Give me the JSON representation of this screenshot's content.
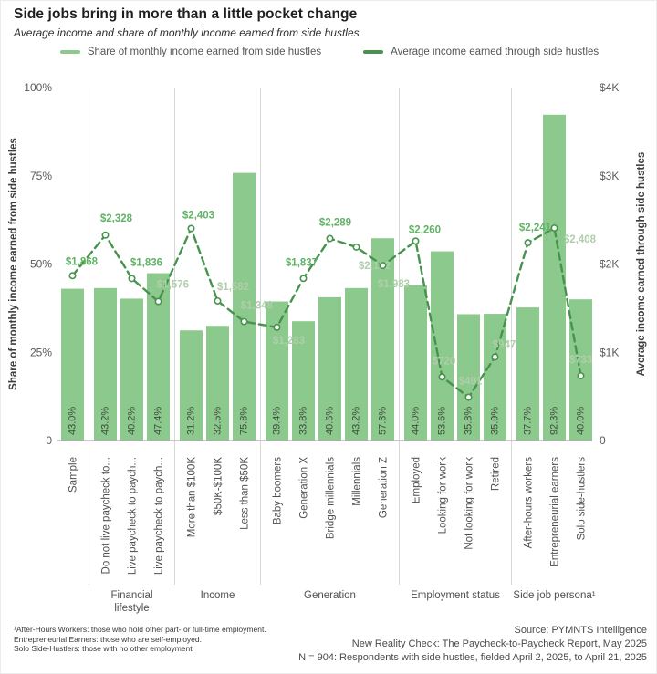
{
  "header": {
    "title": "Side jobs bring in more than a little pocket change",
    "subtitle": "Average income and share of monthly income earned from side hustles"
  },
  "chart_data": {
    "type": "bar+line",
    "legend": [
      {
        "label": "Share of monthly income earned from side hustles",
        "series": "bar",
        "color": "#8CC98C"
      },
      {
        "label": "Average income earned through side hustles",
        "series": "line",
        "color": "#47934E"
      }
    ],
    "left_axis": {
      "title": "Share of monthly income earned from side hustles",
      "unit": "percent",
      "range": [
        0,
        100
      ],
      "ticks": [
        "100%",
        "75%",
        "50%",
        "25%",
        "0"
      ]
    },
    "right_axis": {
      "title": "Average income earned through side hustles",
      "unit": "USD",
      "range": [
        0,
        4000
      ],
      "ticks": [
        "$4K",
        "$3K",
        "$2K",
        "$1K",
        "0"
      ]
    },
    "groups": [
      {
        "label": "",
        "lines": [],
        "categories": [
          "Sample"
        ]
      },
      {
        "label": "Financial lifestyle",
        "lines": [
          "Financial",
          "lifestyle"
        ],
        "categories": [
          "Do not live paycheck to...",
          "Live paycheck to paych...",
          "Live paycheck to paych..."
        ]
      },
      {
        "label": "Income",
        "lines": [
          "Income"
        ],
        "categories": [
          "More than $100K",
          "$50K-$100K",
          "Less than $50K"
        ]
      },
      {
        "label": "Generation",
        "lines": [
          "Generation"
        ],
        "categories": [
          "Baby boomers",
          "Generation X",
          "Bridge millennials",
          "Millennials",
          "Generation Z"
        ]
      },
      {
        "label": "Employment status",
        "lines": [
          "Employment status"
        ],
        "categories": [
          "Employed",
          "Looking for work",
          "Not looking for work",
          "Retired"
        ]
      },
      {
        "label": "Side job persona¹",
        "lines": [
          "Side job persona¹"
        ],
        "categories": [
          "After-hours workers",
          "Entrepreneurial earners",
          "Solo side-hustlers"
        ]
      }
    ],
    "categories": [
      "Sample",
      "Do not live paycheck to...",
      "Live paycheck to paych...",
      "Live paycheck to paych...",
      "More than $100K",
      "$50K-$100K",
      "Less than $50K",
      "Baby boomers",
      "Generation X",
      "Bridge millennials",
      "Millennials",
      "Generation Z",
      "Employed",
      "Looking for work",
      "Not looking for work",
      "Retired",
      "After-hours workers",
      "Entrepreneurial earners",
      "Solo side-hustlers"
    ],
    "series": [
      {
        "name": "Share of monthly income earned from side hustles",
        "type": "bar",
        "axis": "left",
        "values": [
          43.0,
          43.2,
          40.2,
          47.4,
          31.2,
          32.5,
          75.8,
          39.4,
          33.8,
          40.6,
          43.2,
          57.3,
          44.0,
          53.6,
          35.8,
          35.9,
          37.7,
          92.3,
          40.0
        ],
        "labels": [
          "43.0%",
          "43.2%",
          "40.2%",
          "47.4%",
          "31.2%",
          "32.5%",
          "75.8%",
          "39.4%",
          "33.8%",
          "40.6%",
          "43.2%",
          "57.3%",
          "44.0%",
          "53.6%",
          "35.8%",
          "35.9%",
          "37.7%",
          "92.3%",
          "40.0%"
        ]
      },
      {
        "name": "Average income earned through side hustles",
        "type": "line",
        "axis": "right",
        "values": [
          1868,
          2328,
          1836,
          1576,
          2403,
          1582,
          1348,
          1283,
          1837,
          2289,
          2192,
          1983,
          2260,
          720,
          491,
          947,
          2241,
          2408,
          733
        ],
        "labels": [
          "$1,868",
          "$2,328",
          "$1,836",
          "$1,576",
          "$2,403",
          "$1,582",
          "$1,348",
          "$1,283",
          "$1,837",
          "$2,289",
          "$2,192",
          "$1,983",
          "$2,260",
          "$720",
          "$491",
          "$947",
          "$2,241",
          "$2,408",
          "$733"
        ]
      }
    ],
    "colors": {
      "bar": "#8CC98C",
      "line": "#47934E",
      "label_bright": "#5FB364",
      "label_pale": "#AFCFAA"
    }
  },
  "footnotes": [
    "¹After-Hours Workers: those who hold other part- or full-time employment.",
    "Entrepreneurial Earners: those who are self-employed.",
    "Solo Side-Hustlers: those with no other employment"
  ],
  "source": [
    "Source: PYMNTS Intelligence",
    "New Reality Check: The Paycheck-to-Paycheck Report, May 2025",
    "N = 904: Respondents with side hustles, fielded April 2, 2025, to April 21, 2025"
  ]
}
